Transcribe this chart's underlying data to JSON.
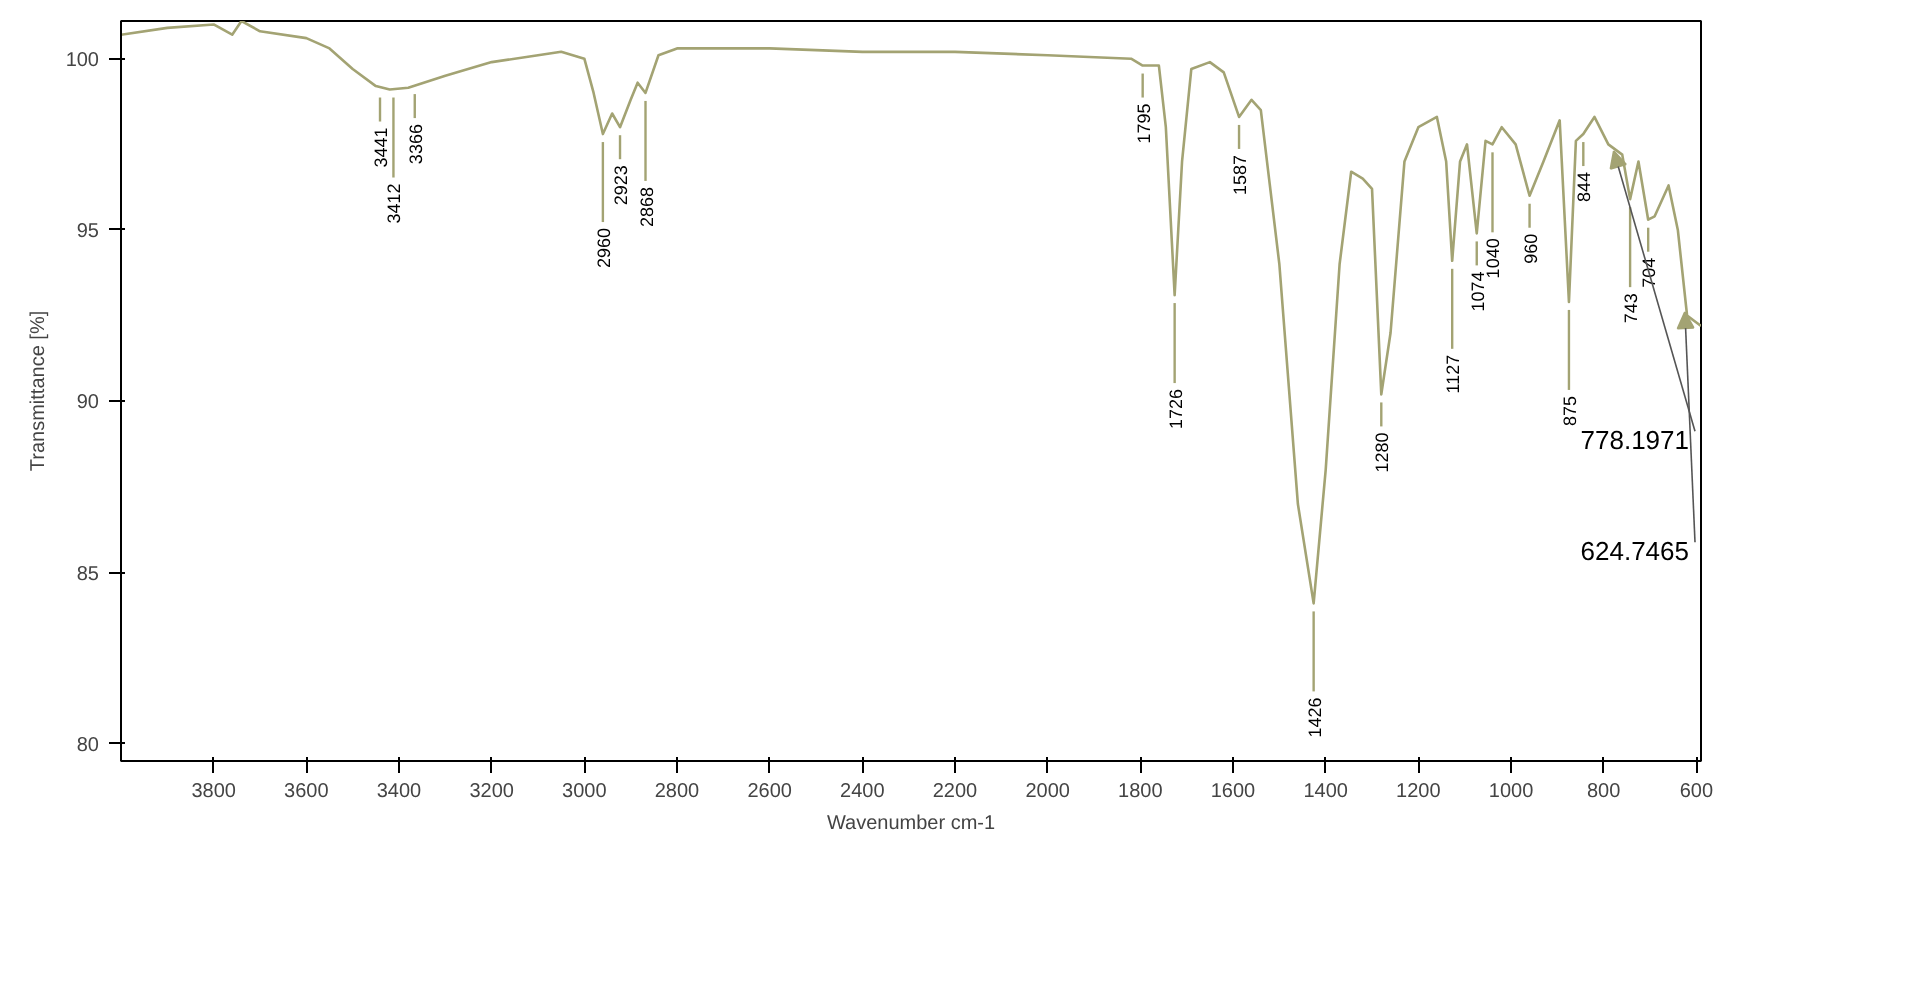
{
  "chart_data": {
    "type": "line",
    "xlabel": "Wavenumber cm-1",
    "ylabel": "Transmittance [%]",
    "xlim": [
      4000,
      590
    ],
    "ylim": [
      79.5,
      101.1
    ],
    "xticks": [
      3800,
      3600,
      3400,
      3200,
      3000,
      2800,
      2600,
      2400,
      2200,
      2000,
      1800,
      1600,
      1400,
      1200,
      1000,
      800,
      600
    ],
    "yticks": [
      80,
      85,
      90,
      95,
      100
    ],
    "grid": false,
    "marker": "none",
    "line_style": "solid",
    "x": [
      4000,
      3900,
      3800,
      3760,
      3740,
      3700,
      3600,
      3550,
      3500,
      3450,
      3420,
      3380,
      3300,
      3200,
      3100,
      3050,
      3000,
      2980,
      2960,
      2940,
      2923,
      2900,
      2885,
      2868,
      2840,
      2800,
      2600,
      2400,
      2200,
      2000,
      1820,
      1795,
      1760,
      1745,
      1726,
      1710,
      1690,
      1650,
      1620,
      1587,
      1560,
      1540,
      1500,
      1460,
      1426,
      1400,
      1370,
      1345,
      1320,
      1300,
      1280,
      1260,
      1230,
      1200,
      1160,
      1140,
      1127,
      1110,
      1095,
      1074,
      1055,
      1040,
      1020,
      990,
      960,
      930,
      895,
      875,
      860,
      844,
      820,
      790,
      760,
      743,
      725,
      704,
      690,
      660,
      640,
      620,
      600,
      590
    ],
    "series": [
      {
        "color": "#a3a373",
        "values": [
          100.7,
          100.9,
          101.0,
          100.7,
          101.1,
          100.8,
          100.6,
          100.3,
          99.7,
          99.2,
          99.1,
          99.15,
          99.5,
          99.9,
          100.1,
          100.2,
          100.0,
          99.0,
          97.8,
          98.4,
          98.0,
          98.8,
          99.3,
          99.0,
          100.1,
          100.3,
          100.3,
          100.2,
          100.2,
          100.1,
          100.0,
          99.8,
          99.8,
          98.0,
          93.1,
          97.0,
          99.7,
          99.9,
          99.6,
          98.3,
          98.8,
          98.5,
          94.0,
          87.0,
          84.1,
          88.0,
          94.0,
          96.7,
          96.5,
          96.2,
          90.2,
          92.0,
          97.0,
          98.0,
          98.3,
          97.0,
          94.1,
          97.0,
          97.5,
          94.9,
          97.6,
          97.5,
          98.0,
          97.5,
          96.0,
          97.0,
          98.2,
          92.9,
          97.6,
          97.8,
          98.3,
          97.5,
          97.2,
          95.9,
          97.0,
          95.3,
          95.4,
          96.3,
          95.0,
          92.5,
          92.3,
          92.2
        ]
      }
    ],
    "annotations": [
      {
        "text": "3441",
        "x": 3441,
        "y": 99.1
      },
      {
        "text": "3412",
        "x": 3412,
        "y": 99.1
      },
      {
        "text": "3366",
        "x": 3366,
        "y": 99.2
      },
      {
        "text": "2960",
        "x": 2960,
        "y": 97.8
      },
      {
        "text": "2923",
        "x": 2923,
        "y": 98.0
      },
      {
        "text": "2868",
        "x": 2868,
        "y": 99.0
      },
      {
        "text": "1795",
        "x": 1795,
        "y": 99.8
      },
      {
        "text": "1726",
        "x": 1726,
        "y": 93.1
      },
      {
        "text": "1587",
        "x": 1587,
        "y": 98.3
      },
      {
        "text": "1426",
        "x": 1426,
        "y": 84.1
      },
      {
        "text": "1280",
        "x": 1280,
        "y": 90.2
      },
      {
        "text": "1127",
        "x": 1127,
        "y": 94.1
      },
      {
        "text": "1074",
        "x": 1074,
        "y": 94.9
      },
      {
        "text": "1040",
        "x": 1040,
        "y": 97.5
      },
      {
        "text": "960",
        "x": 960,
        "y": 96.0
      },
      {
        "text": "875",
        "x": 875,
        "y": 92.9
      },
      {
        "text": "844",
        "x": 844,
        "y": 97.8
      },
      {
        "text": "743",
        "x": 743,
        "y": 95.9
      },
      {
        "text": "704",
        "x": 704,
        "y": 95.3
      },
      {
        "text": "778.1971",
        "x": 778.1971,
        "y": 97.3
      },
      {
        "text": "624.7465",
        "x": 624.7465,
        "y": 92.6
      }
    ]
  }
}
